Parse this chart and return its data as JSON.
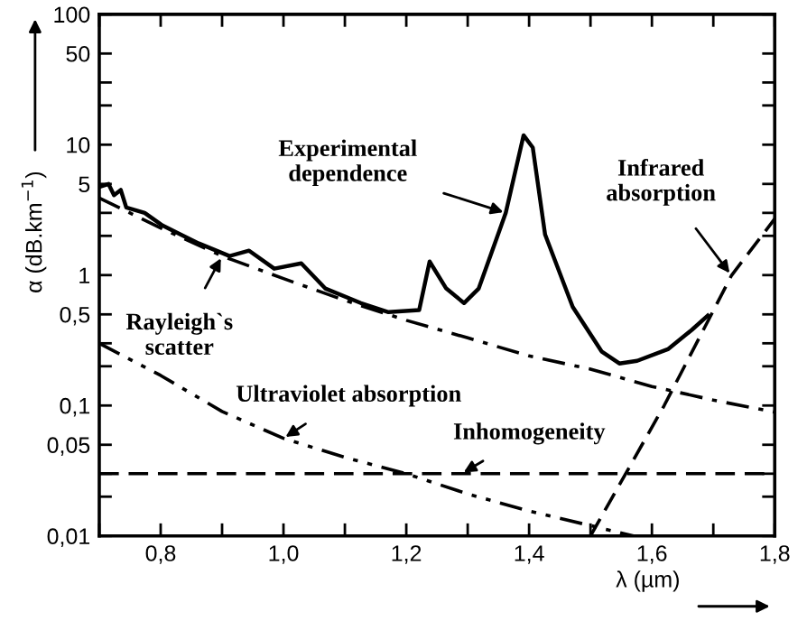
{
  "chart_data": {
    "type": "line",
    "xlabel": "λ (µm)",
    "ylabel": "α (dB.km$^{−1}$)",
    "log": "y",
    "grid": false,
    "xlim": [
      0.7,
      1.8
    ],
    "ylim": [
      0.01,
      100
    ],
    "xticks": [
      {
        "value": 0.7,
        "label": null
      },
      {
        "value": 0.8,
        "label": "0,8"
      },
      {
        "value": 0.9,
        "label": null
      },
      {
        "value": 1.0,
        "label": "1,0"
      },
      {
        "value": 1.1,
        "label": null
      },
      {
        "value": 1.2,
        "label": "1,2"
      },
      {
        "value": 1.3,
        "label": null
      },
      {
        "value": 1.4,
        "label": "1,4"
      },
      {
        "value": 1.5,
        "label": null
      },
      {
        "value": 1.6,
        "label": "1,6"
      },
      {
        "value": 1.7,
        "label": null
      },
      {
        "value": 1.8,
        "label": "1,8"
      }
    ],
    "yticks": [
      {
        "value": 0.01,
        "label": "0,01"
      },
      {
        "value": 0.02,
        "label": null
      },
      {
        "value": 0.03,
        "label": null
      },
      {
        "value": 0.05,
        "label": "0,05"
      },
      {
        "value": 0.1,
        "label": "0,1"
      },
      {
        "value": 0.2,
        "label": null
      },
      {
        "value": 0.3,
        "label": null
      },
      {
        "value": 0.5,
        "label": "0,5"
      },
      1,
      {
        "value": 2,
        "label": null
      },
      {
        "value": 3,
        "label": null
      },
      5,
      10,
      {
        "value": 20,
        "label": null
      },
      {
        "value": 30,
        "label": null
      },
      50,
      100
    ],
    "series": [
      {
        "color": "#000000",
        "line_style": "solid",
        "x": [
          0.703,
          0.715,
          0.724,
          0.735,
          0.744,
          0.774,
          0.803,
          0.862,
          0.912,
          0.944,
          0.985,
          1.029,
          1.068,
          1.126,
          1.171,
          1.221,
          1.238,
          1.265,
          1.294,
          1.318,
          1.362,
          1.391,
          1.406,
          1.426,
          1.471,
          1.518,
          1.547,
          1.576,
          1.626,
          1.665,
          1.691
        ],
        "values": [
          4.8,
          5.0,
          4.1,
          4.5,
          3.3,
          3.0,
          2.4,
          1.75,
          1.4,
          1.54,
          1.12,
          1.23,
          0.79,
          0.61,
          0.52,
          0.54,
          1.27,
          0.79,
          0.61,
          0.79,
          3.0,
          11.8,
          9.5,
          2.05,
          0.57,
          0.26,
          0.21,
          0.22,
          0.27,
          0.38,
          0.49
        ]
      },
      {
        "color": "#000000",
        "line_style": "dashdot",
        "x": [
          0.7,
          0.8,
          0.9,
          1.0,
          1.1,
          1.2,
          1.3,
          1.4,
          1.5,
          1.6,
          1.7,
          1.8
        ],
        "values": [
          3.9,
          2.3,
          1.4,
          0.94,
          0.64,
          0.45,
          0.33,
          0.24,
          0.19,
          0.14,
          0.11,
          0.089
        ]
      },
      {
        "color": "#000000",
        "line_style": "dashdotdot",
        "x": [
          0.7,
          0.8,
          0.9,
          1.0,
          1.1,
          1.2,
          1.3,
          1.4,
          1.5,
          1.57
        ],
        "values": [
          0.3,
          0.17,
          0.09,
          0.056,
          0.04,
          0.03,
          0.021,
          0.0155,
          0.012,
          0.01
        ]
      },
      {
        "color": "#000000",
        "line_style": "dashed",
        "x": [
          0.7,
          1.8
        ],
        "values": [
          0.03,
          0.03
        ]
      },
      {
        "color": "#000000",
        "line_style": "dashed",
        "x": [
          1.5,
          1.62,
          1.73,
          1.8
        ],
        "values": [
          0.01,
          0.1,
          1.0,
          2.7
        ]
      }
    ],
    "annotations": [
      {
        "text": "Experimental\ndependence",
        "x": 1.362,
        "y": 3.0
      },
      {
        "text": "Infrared\nabsorption",
        "x": 1.729,
        "y": 1.0
      },
      {
        "text": "Rayleigh`s\nscatter",
        "x": 0.9,
        "y": 1.4
      },
      {
        "text": "Ultraviolet absorption",
        "x": 1.0,
        "y": 0.056
      },
      {
        "text": "Inhomogeneity",
        "x": 1.29,
        "y": 0.03
      }
    ]
  }
}
